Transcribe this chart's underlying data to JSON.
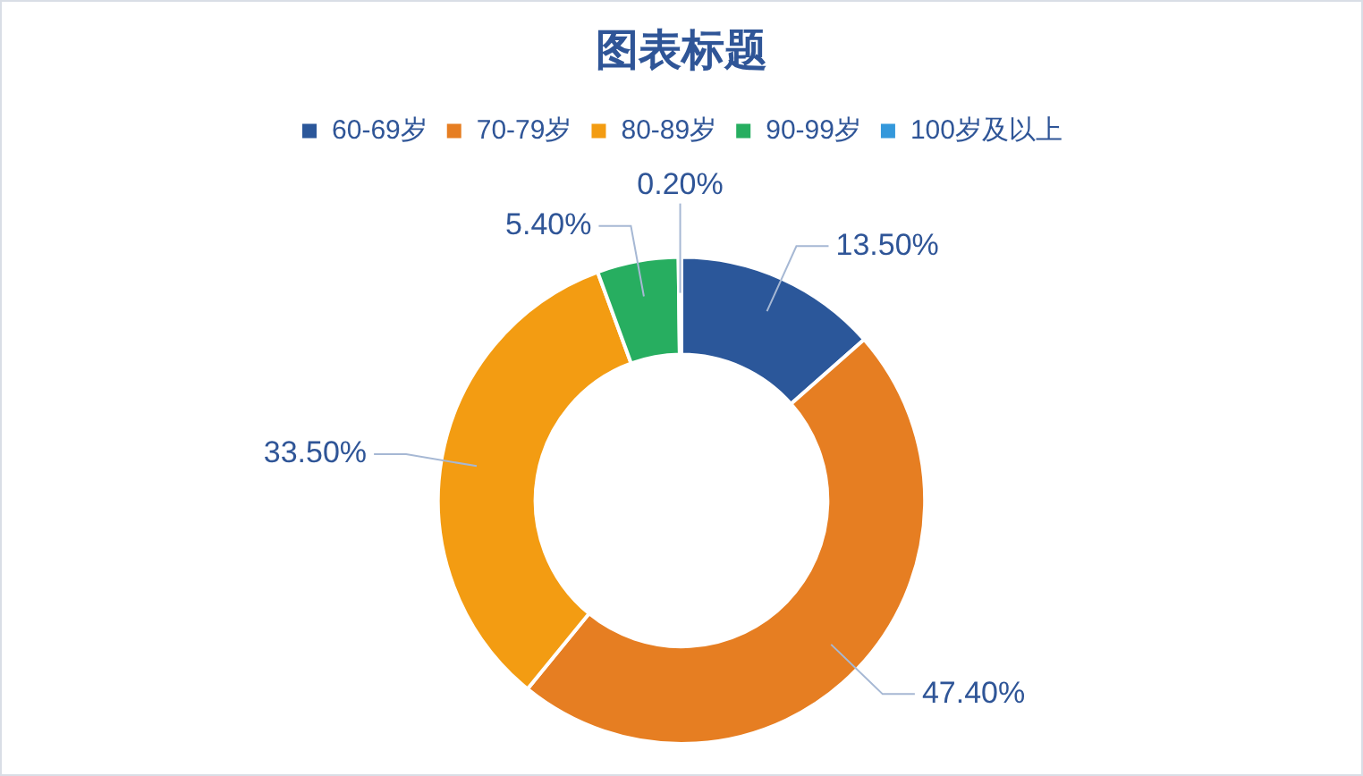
{
  "chart_data": {
    "type": "donut",
    "title": "图表标题",
    "categories": [
      "60-69岁",
      "70-79岁",
      "80-89岁",
      "90-99岁",
      "100岁及以上"
    ],
    "values": [
      13.5,
      47.4,
      33.5,
      5.4,
      0.2
    ],
    "colors": [
      "#2b579a",
      "#e67e22",
      "#f39c12",
      "#27ae60",
      "#3498db"
    ],
    "value_labels": [
      "13.50%",
      "47.40%",
      "33.50%",
      "5.40%",
      "0.20%"
    ],
    "legend": "top"
  }
}
